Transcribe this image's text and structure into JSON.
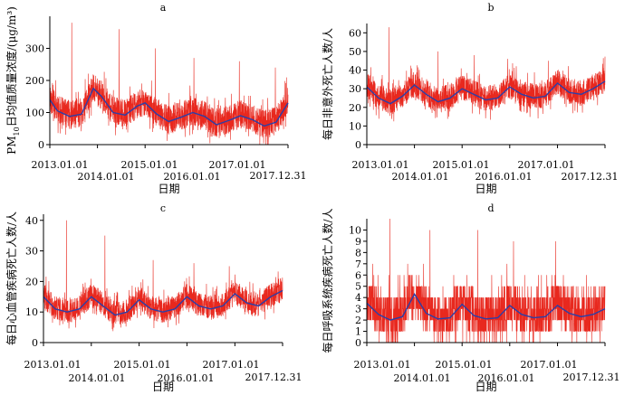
{
  "colors": {
    "raw_series": "#e8281e",
    "smooth_series": "#2b3fa8",
    "axis": "#000000"
  },
  "chart_data": [
    {
      "panel": "a",
      "type": "line",
      "ylabel_main": "PM",
      "ylabel_sub": "10",
      "ylabel_rest": "日均值质量浓度/(μg/m³)",
      "xlabel": "日期",
      "ylim": [
        0,
        400
      ],
      "yticks": [
        0,
        100,
        200,
        300
      ],
      "xlim": [
        "2013-01-01",
        "2017-12-31"
      ],
      "xticks": [
        "2013.01.01",
        "2014.01.01",
        "2015.01.01",
        "2016.01.01",
        "2017.01.01",
        "2017.12.31"
      ],
      "series": [
        {
          "style": "raw_daily",
          "baseline": 100,
          "amplitude": 28,
          "noise": 45,
          "peak_spikes": [
            380,
            360,
            300,
            270,
            260,
            240
          ]
        },
        {
          "style": "smoothed",
          "points": [
            [
              "2013-01-01",
              140
            ],
            [
              "2013-03-01",
              105
            ],
            [
              "2013-06-01",
              88
            ],
            [
              "2013-09-01",
              95
            ],
            [
              "2013-12-01",
              175
            ],
            [
              "2014-02-01",
              150
            ],
            [
              "2014-05-01",
              100
            ],
            [
              "2014-08-01",
              92
            ],
            [
              "2014-11-01",
              120
            ],
            [
              "2015-01-01",
              130
            ],
            [
              "2015-04-01",
              95
            ],
            [
              "2015-07-01",
              72
            ],
            [
              "2015-10-01",
              85
            ],
            [
              "2016-01-01",
              100
            ],
            [
              "2016-04-01",
              88
            ],
            [
              "2016-07-01",
              62
            ],
            [
              "2016-10-01",
              75
            ],
            [
              "2017-01-01",
              90
            ],
            [
              "2017-04-01",
              78
            ],
            [
              "2017-07-01",
              58
            ],
            [
              "2017-10-01",
              70
            ],
            [
              "2017-12-31",
              130
            ]
          ]
        }
      ]
    },
    {
      "panel": "b",
      "type": "line",
      "ylabel_main": "每日非意外死亡人数/人",
      "xlabel": "日期",
      "ylim": [
        0,
        65
      ],
      "yticks": [
        0,
        10,
        20,
        30,
        40,
        50,
        60
      ],
      "xlim": [
        "2013-01-01",
        "2017-12-31"
      ],
      "xticks": [
        "2013.01.01",
        "2014.01.01",
        "2015.01.01",
        "2016.01.01",
        "2017.01.01",
        "2017.12.31"
      ],
      "series": [
        {
          "style": "raw_daily",
          "baseline": 28,
          "amplitude": 4,
          "noise": 7,
          "peak_spikes": [
            63,
            50,
            48,
            46,
            45
          ]
        },
        {
          "style": "smoothed",
          "points": [
            [
              "2013-01-01",
              31
            ],
            [
              "2013-04-01",
              25
            ],
            [
              "2013-07-01",
              22
            ],
            [
              "2013-10-01",
              26
            ],
            [
              "2014-01-01",
              32
            ],
            [
              "2014-04-01",
              27
            ],
            [
              "2014-07-01",
              23
            ],
            [
              "2014-10-01",
              25
            ],
            [
              "2015-01-01",
              30
            ],
            [
              "2015-04-01",
              27
            ],
            [
              "2015-07-01",
              24
            ],
            [
              "2015-10-01",
              25
            ],
            [
              "2016-01-01",
              31
            ],
            [
              "2016-04-01",
              27
            ],
            [
              "2016-07-01",
              25
            ],
            [
              "2016-10-01",
              26
            ],
            [
              "2017-01-01",
              33
            ],
            [
              "2017-04-01",
              28
            ],
            [
              "2017-07-01",
              27
            ],
            [
              "2017-10-01",
              30
            ],
            [
              "2017-12-31",
              34
            ]
          ]
        }
      ]
    },
    {
      "panel": "c",
      "type": "line",
      "ylabel_main": "每日心血管疾病死亡人数/人",
      "xlabel": "日期",
      "ylim": [
        0,
        42
      ],
      "yticks": [
        0,
        10,
        20,
        30,
        40
      ],
      "xlim": [
        "2013-01-01",
        "2017-12-31"
      ],
      "xticks": [
        "2013.01.01",
        "2014.01.01",
        "2015.01.01",
        "2016.01.01",
        "2017.01.01",
        "2017.12.31"
      ],
      "series": [
        {
          "style": "raw_daily",
          "baseline": 12,
          "amplitude": 3,
          "noise": 4,
          "peak_spikes": [
            40,
            35,
            27,
            26,
            25
          ]
        },
        {
          "style": "smoothed",
          "points": [
            [
              "2013-01-01",
              15
            ],
            [
              "2013-04-01",
              11
            ],
            [
              "2013-07-01",
              10
            ],
            [
              "2013-10-01",
              11
            ],
            [
              "2014-01-01",
              15
            ],
            [
              "2014-04-01",
              12
            ],
            [
              "2014-07-01",
              9
            ],
            [
              "2014-10-01",
              10
            ],
            [
              "2015-01-01",
              14
            ],
            [
              "2015-04-01",
              11
            ],
            [
              "2015-07-01",
              10
            ],
            [
              "2015-10-01",
              11
            ],
            [
              "2016-01-01",
              15
            ],
            [
              "2016-04-01",
              12
            ],
            [
              "2016-07-01",
              11
            ],
            [
              "2016-10-01",
              12
            ],
            [
              "2017-01-01",
              16
            ],
            [
              "2017-04-01",
              13
            ],
            [
              "2017-07-01",
              12
            ],
            [
              "2017-10-01",
              15
            ],
            [
              "2017-12-31",
              17
            ]
          ]
        }
      ]
    },
    {
      "panel": "d",
      "type": "line",
      "ylabel_main": "每日呼吸系统疾病死亡人数/人",
      "xlabel": "日期",
      "ylim": [
        0,
        11
      ],
      "yticks": [
        0,
        1,
        2,
        3,
        4,
        5,
        6,
        7,
        8,
        9,
        10
      ],
      "xlim": [
        "2013-01-01",
        "2017-12-31"
      ],
      "xticks": [
        "2013.01.01",
        "2014.01.01",
        "2015.01.01",
        "2016.01.01",
        "2017.01.01",
        "2017.12.31"
      ],
      "series": [
        {
          "style": "raw_daily_integer",
          "baseline": 3,
          "amplitude": 0.8,
          "noise": 2,
          "peak_spikes": [
            11,
            10,
            10,
            9,
            9
          ]
        },
        {
          "style": "smoothed",
          "points": [
            [
              "2013-01-01",
              3.5
            ],
            [
              "2013-04-01",
              2.5
            ],
            [
              "2013-07-01",
              2.0
            ],
            [
              "2013-10-01",
              2.3
            ],
            [
              "2014-01-01",
              4.3
            ],
            [
              "2014-04-01",
              2.6
            ],
            [
              "2014-07-01",
              2.1
            ],
            [
              "2014-10-01",
              2.2
            ],
            [
              "2015-01-01",
              3.4
            ],
            [
              "2015-04-01",
              2.4
            ],
            [
              "2015-07-01",
              2.1
            ],
            [
              "2015-10-01",
              2.2
            ],
            [
              "2016-01-01",
              3.3
            ],
            [
              "2016-04-01",
              2.5
            ],
            [
              "2016-07-01",
              2.2
            ],
            [
              "2016-10-01",
              2.3
            ],
            [
              "2017-01-01",
              3.3
            ],
            [
              "2017-04-01",
              2.6
            ],
            [
              "2017-07-01",
              2.3
            ],
            [
              "2017-10-01",
              2.5
            ],
            [
              "2017-12-31",
              3.0
            ]
          ]
        }
      ]
    }
  ]
}
